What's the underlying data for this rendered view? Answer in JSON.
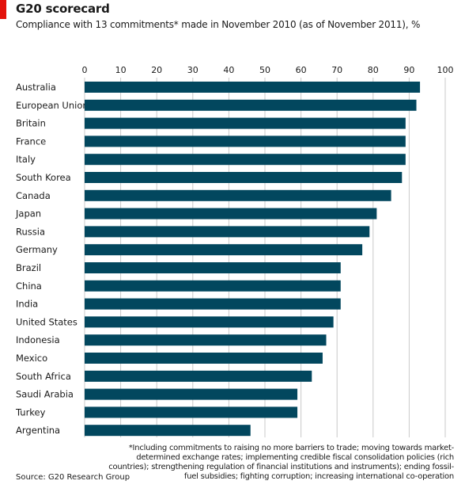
{
  "header": {
    "title": "G20 scorecard",
    "subtitle": "Compliance with 13 commitments* made in November 2010 (as of November 2011), %"
  },
  "footer": {
    "footnote": "*Including commitments to raising no more barriers to trade; moving towards market-determined exchange rates; implementing credible fiscal consolidation policies (rich countries); strengthening regulation of financial institutions and instruments); ending fossil-fuel subsidies; fighting corruption; increasing international co-operation",
    "source": "Source: G20 Research Group"
  },
  "colors": {
    "bar": "#02475e",
    "grid": "#c9c9c9",
    "accent": "#e3120b"
  },
  "chart_data": {
    "type": "bar",
    "orientation": "horizontal",
    "title": "G20 scorecard",
    "subtitle": "Compliance with 13 commitments* made in November 2010 (as of November 2011), %",
    "categories": [
      "Australia",
      "European Union",
      "Britain",
      "France",
      "Italy",
      "South Korea",
      "Canada",
      "Japan",
      "Russia",
      "Germany",
      "Brazil",
      "China",
      "India",
      "United States",
      "Indonesia",
      "Mexico",
      "South Africa",
      "Saudi Arabia",
      "Turkey",
      "Argentina"
    ],
    "values": [
      93,
      92,
      89,
      89,
      89,
      88,
      85,
      81,
      79,
      77,
      71,
      71,
      71,
      69,
      67,
      66,
      63,
      59,
      59,
      46
    ],
    "xlim": [
      0,
      100
    ],
    "xticks": [
      0,
      10,
      20,
      30,
      40,
      50,
      60,
      70,
      80,
      90,
      100
    ],
    "axis_position": "top",
    "grid": true
  }
}
